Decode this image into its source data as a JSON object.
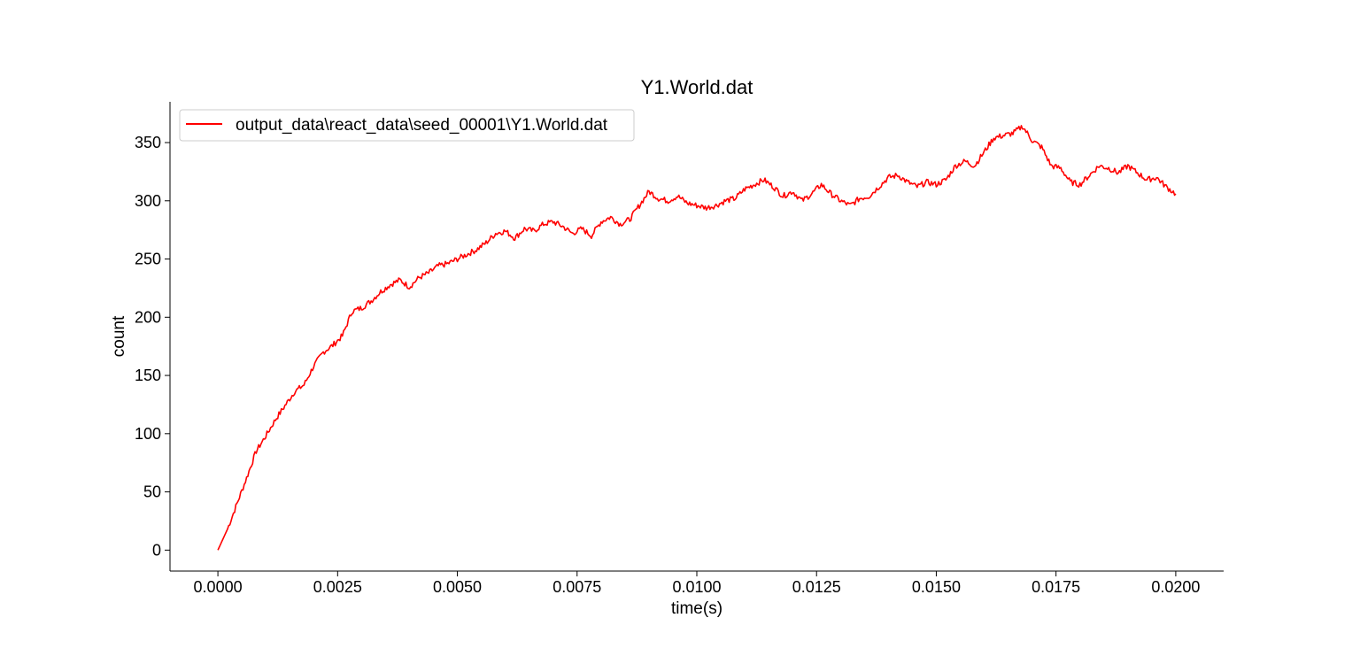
{
  "chart_data": {
    "type": "line",
    "title": "Y1.World.dat",
    "xlabel": "time(s)",
    "ylabel": "count",
    "xlim": [
      -0.001,
      0.021
    ],
    "ylim": [
      -18,
      385
    ],
    "x_ticks": [
      0.0,
      0.0025,
      0.005,
      0.0075,
      0.01,
      0.0125,
      0.015,
      0.0175,
      0.02
    ],
    "x_tick_labels": [
      "0.0000",
      "0.0025",
      "0.0050",
      "0.0075",
      "0.0100",
      "0.0125",
      "0.0150",
      "0.0175",
      "0.0200"
    ],
    "y_ticks": [
      0,
      50,
      100,
      150,
      200,
      250,
      300,
      350
    ],
    "y_tick_labels": [
      "0",
      "50",
      "100",
      "150",
      "200",
      "250",
      "300",
      "350"
    ],
    "grid": false,
    "legend_position": "upper-left",
    "series": [
      {
        "name": "output_data\\react_data\\seed_00001\\Y1.World.dat",
        "color": "#ff0000",
        "x": [
          0.0,
          0.0002,
          0.0004,
          0.0006,
          0.0008,
          0.001,
          0.0012,
          0.0014,
          0.0016,
          0.0018,
          0.002,
          0.0022,
          0.0024,
          0.0026,
          0.0028,
          0.003,
          0.0032,
          0.0034,
          0.0036,
          0.0038,
          0.004,
          0.0042,
          0.0044,
          0.0046,
          0.0048,
          0.005,
          0.0052,
          0.0054,
          0.0056,
          0.0058,
          0.006,
          0.0062,
          0.0064,
          0.0066,
          0.0068,
          0.007,
          0.0072,
          0.0074,
          0.0076,
          0.0078,
          0.008,
          0.0082,
          0.0084,
          0.0086,
          0.0088,
          0.009,
          0.0092,
          0.0094,
          0.0096,
          0.0098,
          0.01,
          0.0102,
          0.0104,
          0.0106,
          0.0108,
          0.011,
          0.0112,
          0.0114,
          0.0116,
          0.0118,
          0.012,
          0.0122,
          0.0124,
          0.0126,
          0.0128,
          0.013,
          0.0132,
          0.0134,
          0.0136,
          0.0138,
          0.014,
          0.0142,
          0.0144,
          0.0146,
          0.0148,
          0.015,
          0.0152,
          0.0154,
          0.0156,
          0.0158,
          0.016,
          0.0162,
          0.0164,
          0.0166,
          0.0168,
          0.017,
          0.0172,
          0.0174,
          0.0176,
          0.0178,
          0.018,
          0.0182,
          0.0184,
          0.0186,
          0.0188,
          0.019,
          0.0192,
          0.0194,
          0.0196,
          0.0198,
          0.02
        ],
        "y": [
          0,
          18,
          40,
          62,
          85,
          98,
          112,
          124,
          136,
          142,
          158,
          170,
          176,
          184,
          205,
          208,
          214,
          222,
          228,
          232,
          226,
          234,
          238,
          244,
          246,
          250,
          254,
          258,
          264,
          272,
          274,
          268,
          276,
          274,
          280,
          282,
          278,
          272,
          276,
          270,
          282,
          286,
          280,
          284,
          296,
          308,
          302,
          300,
          304,
          298,
          296,
          294,
          296,
          300,
          302,
          310,
          314,
          318,
          312,
          304,
          308,
          300,
          306,
          314,
          306,
          300,
          296,
          302,
          304,
          312,
          320,
          322,
          316,
          312,
          316,
          314,
          318,
          330,
          334,
          330,
          342,
          354,
          356,
          358,
          364,
          352,
          346,
          330,
          328,
          316,
          314,
          322,
          330,
          328,
          324,
          330,
          324,
          318,
          320,
          312,
          306
        ]
      }
    ]
  }
}
